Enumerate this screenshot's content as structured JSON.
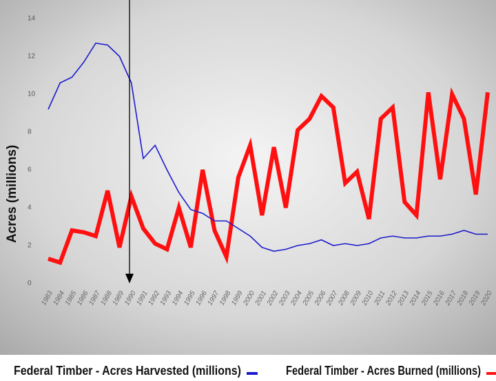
{
  "chart_data": {
    "type": "line",
    "y_label": "Acres (millions)",
    "categories": [
      "1983",
      "1984",
      "1985",
      "1986",
      "1987",
      "1988",
      "1989",
      "1990",
      "1991",
      "1992",
      "1993",
      "1994",
      "1995",
      "1996",
      "1997",
      "1998",
      "1999",
      "2000",
      "2001",
      "2002",
      "2003",
      "2004",
      "2005",
      "2006",
      "2007",
      "2008",
      "2009",
      "2010",
      "2011",
      "2012",
      "2013",
      "2014",
      "2015",
      "2016",
      "2017",
      "2018",
      "2019",
      "2020"
    ],
    "series": [
      {
        "name": "Federal Timber - Acres Harvested (millions)",
        "color": "#1a1acc",
        "values": [
          9.2,
          10.6,
          10.9,
          11.7,
          12.7,
          12.6,
          12.0,
          10.6,
          6.6,
          7.3,
          6.0,
          4.8,
          3.9,
          3.7,
          3.3,
          3.3,
          2.9,
          2.5,
          1.9,
          1.7,
          1.8,
          2.0,
          2.1,
          2.3,
          2.0,
          2.1,
          2.0,
          2.1,
          2.4,
          2.5,
          2.4,
          2.4,
          2.5,
          2.5,
          2.6,
          2.8,
          2.6,
          2.6
        ]
      },
      {
        "name": "Federal Timber - Acres Burned (millions)",
        "color": "#ff1010",
        "values": [
          1.3,
          1.1,
          2.8,
          2.7,
          2.5,
          4.9,
          1.9,
          4.6,
          2.9,
          2.1,
          1.8,
          4.0,
          1.9,
          6.0,
          2.8,
          1.4,
          5.6,
          7.3,
          3.6,
          7.2,
          4.0,
          8.1,
          8.7,
          9.9,
          9.3,
          5.3,
          5.9,
          3.4,
          8.7,
          9.3,
          4.3,
          3.6,
          10.1,
          5.5,
          10.0,
          8.7,
          4.7,
          10.1
        ]
      }
    ],
    "ylim": [
      0,
      14
    ],
    "yticks": [
      0,
      2,
      4,
      6,
      8,
      10,
      12,
      14
    ],
    "grid": false
  }
}
